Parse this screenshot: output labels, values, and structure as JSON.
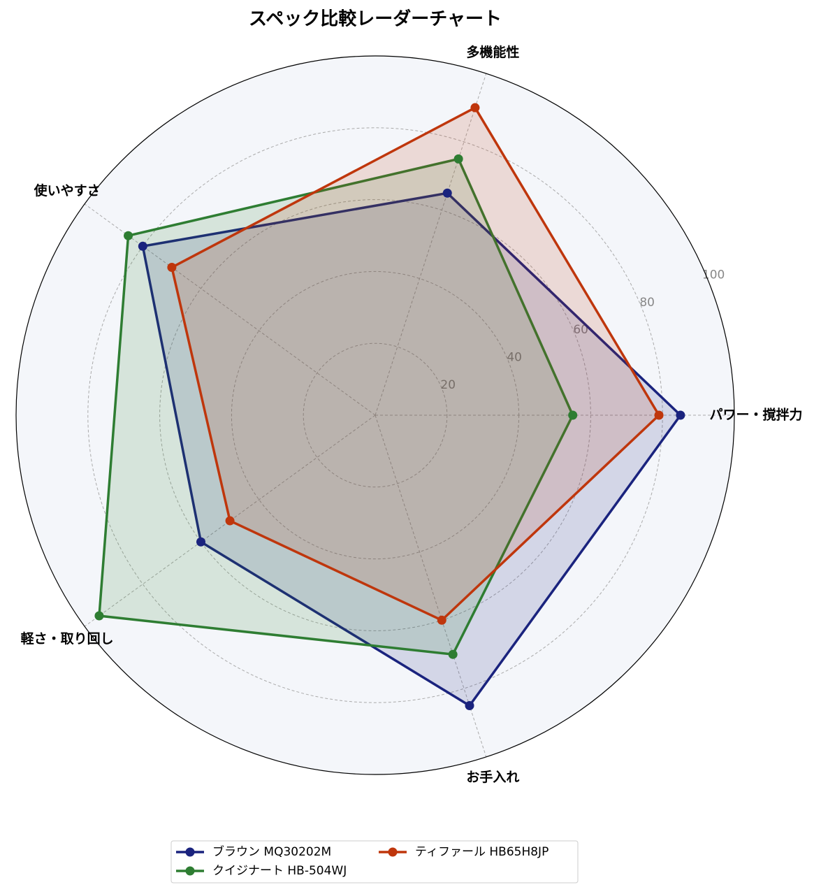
{
  "chart_data": {
    "type": "radar",
    "title": "スペック比較レーダーチャート",
    "categories": [
      "パワー・撹拌力",
      "多機能性",
      "使いやすさ",
      "軽さ・取り回し",
      "お手入れ"
    ],
    "series": [
      {
        "name": "ブラウン MQ30202M",
        "color": "#1a237e",
        "values": [
          85,
          65,
          80,
          60,
          85
        ]
      },
      {
        "name": "クイジナート HB-504WJ",
        "color": "#2e7d32",
        "values": [
          55,
          75,
          85,
          95,
          70
        ]
      },
      {
        "name": "ティファール HB65H8JP",
        "color": "#bf360c",
        "values": [
          79,
          90,
          70,
          50,
          60
        ]
      }
    ],
    "rlim": [
      0,
      100
    ],
    "rticks": [
      20,
      40,
      60,
      80,
      100
    ],
    "grid": true
  }
}
